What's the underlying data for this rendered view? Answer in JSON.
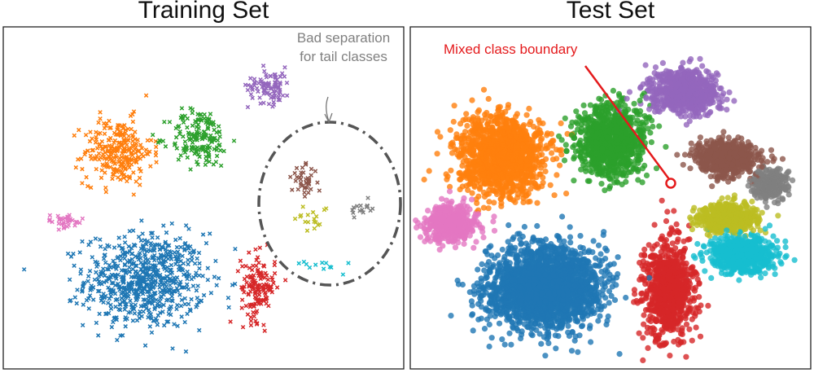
{
  "figure": {
    "left_title": "Training Set",
    "right_title": "Test Set"
  },
  "annotations": {
    "bad_separation_line1": "Bad separation",
    "bad_separation_line2": "for tail classes",
    "mixed_boundary": "Mixed class boundary",
    "bad_separation_color": "#808080",
    "mixed_boundary_color": "#e41a1c"
  },
  "chart_data": [
    {
      "type": "scatter",
      "title": "Training Set",
      "marker": "x",
      "xlabel": "",
      "ylabel": "",
      "axes_visible": false,
      "grid": false,
      "xlim": [
        0,
        100
      ],
      "ylim": [
        0,
        100
      ],
      "series": [
        {
          "color": "#1f77b4",
          "center": [
            35,
            25
          ],
          "spread": [
            14,
            13
          ],
          "count": 700
        },
        {
          "color": "#ff7f0e",
          "center": [
            28,
            64
          ],
          "spread": [
            8,
            9
          ],
          "count": 260
        },
        {
          "color": "#2ca02c",
          "center": [
            49,
            68
          ],
          "spread": [
            7,
            8
          ],
          "count": 160
        },
        {
          "color": "#9467bd",
          "center": [
            67,
            84
          ],
          "spread": [
            5,
            5
          ],
          "count": 90
        },
        {
          "color": "#d62728",
          "center": [
            64,
            23
          ],
          "spread": [
            4,
            9
          ],
          "count": 140
        },
        {
          "color": "#8c564b",
          "center": [
            76,
            55
          ],
          "spread": [
            3,
            4
          ],
          "count": 40
        },
        {
          "color": "#e377c2",
          "center": [
            14,
            43
          ],
          "spread": [
            5,
            2
          ],
          "count": 35
        },
        {
          "color": "#7f7f7f",
          "center": [
            91,
            47
          ],
          "spread": [
            3,
            3
          ],
          "count": 15
        },
        {
          "color": "#bcbd22",
          "center": [
            78,
            44
          ],
          "spread": [
            4,
            4
          ],
          "count": 18
        },
        {
          "color": "#17becf",
          "center": [
            79,
            30
          ],
          "spread": [
            6,
            2
          ],
          "count": 12
        }
      ]
    },
    {
      "type": "scatter",
      "title": "Test Set",
      "marker": "o",
      "xlabel": "",
      "ylabel": "",
      "axes_visible": false,
      "grid": false,
      "xlim": [
        0,
        100
      ],
      "ylim": [
        0,
        100
      ],
      "series": [
        {
          "color": "#1f77b4",
          "center": [
            33,
            23
          ],
          "spread": [
            13,
            11
          ],
          "count": 2200
        },
        {
          "color": "#ff7f0e",
          "center": [
            22,
            63
          ],
          "spread": [
            10,
            11
          ],
          "count": 1300
        },
        {
          "color": "#2ca02c",
          "center": [
            50,
            67
          ],
          "spread": [
            8,
            10
          ],
          "count": 900
        },
        {
          "color": "#9467bd",
          "center": [
            69,
            82
          ],
          "spread": [
            8,
            6
          ],
          "count": 700
        },
        {
          "color": "#8c564b",
          "center": [
            80,
            62
          ],
          "spread": [
            7,
            5
          ],
          "count": 600
        },
        {
          "color": "#7f7f7f",
          "center": [
            91,
            54
          ],
          "spread": [
            4,
            4
          ],
          "count": 300
        },
        {
          "color": "#bcbd22",
          "center": [
            80,
            44
          ],
          "spread": [
            7,
            4
          ],
          "count": 500
        },
        {
          "color": "#17becf",
          "center": [
            84,
            33
          ],
          "spread": [
            8,
            5
          ],
          "count": 600
        },
        {
          "color": "#d62728",
          "center": [
            65,
            22
          ],
          "spread": [
            6,
            13
          ],
          "count": 800
        },
        {
          "color": "#e377c2",
          "center": [
            9,
            42
          ],
          "spread": [
            6,
            5
          ],
          "count": 500
        }
      ]
    }
  ]
}
